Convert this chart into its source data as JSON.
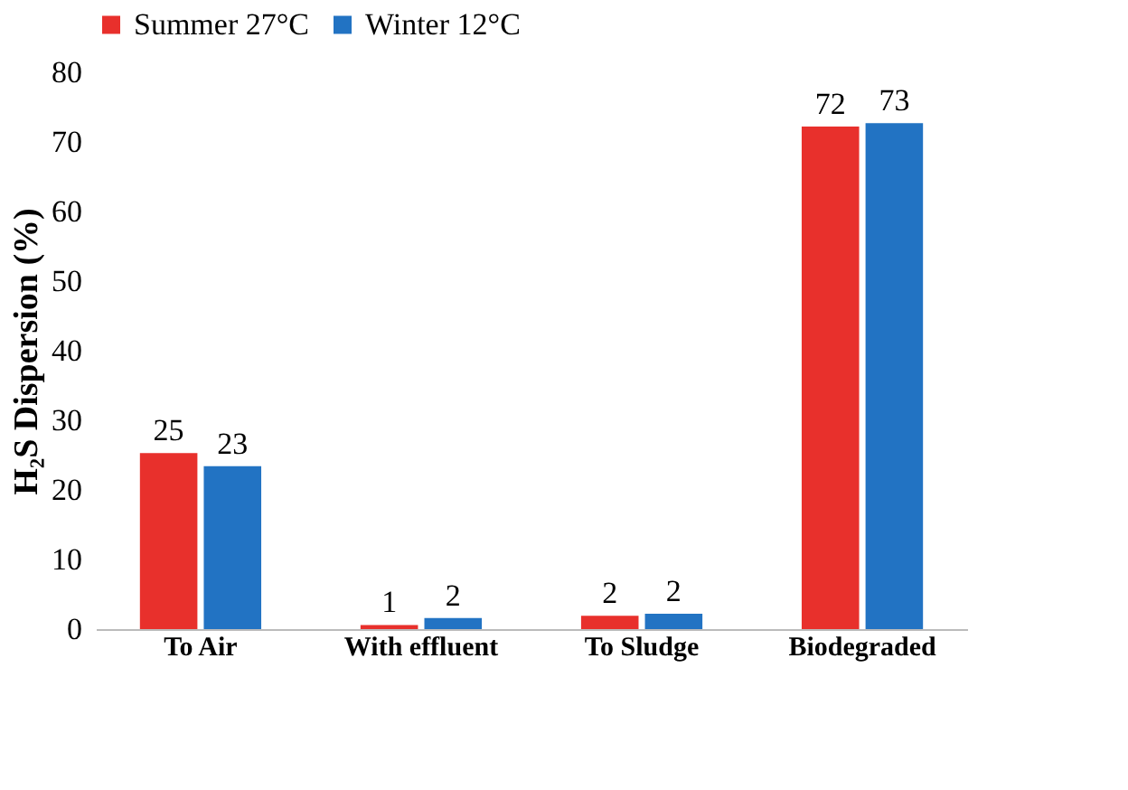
{
  "chart_data": {
    "type": "bar",
    "ylabel": "H₂S Dispersion (%)",
    "categories": [
      "To Air",
      "With effluent",
      "To Sludge",
      "Biodegraded"
    ],
    "series": [
      {
        "name": "Summer 27°C",
        "color": "#e8302c",
        "values": [
          25.3,
          0.6,
          1.9,
          72.2
        ],
        "value_labels": [
          "25",
          "1",
          "2",
          "72"
        ]
      },
      {
        "name": "Winter 12°C",
        "color": "#2273c3",
        "values": [
          23.4,
          1.6,
          2.2,
          72.7
        ],
        "value_labels": [
          "23",
          "2",
          "2",
          "73"
        ]
      }
    ],
    "ylim": [
      0,
      80
    ],
    "yticks": [
      0,
      10,
      20,
      30,
      40,
      50,
      60,
      70,
      80
    ],
    "grid": false,
    "legend": "top"
  }
}
